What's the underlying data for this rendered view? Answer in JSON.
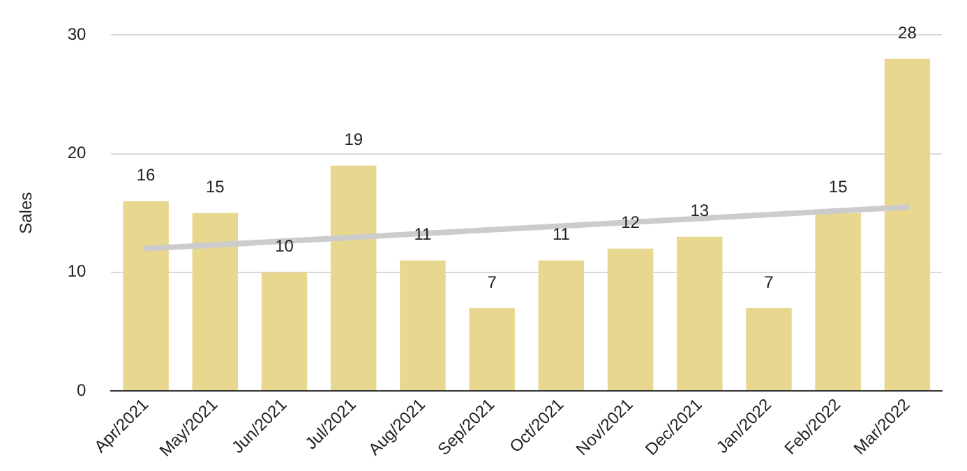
{
  "chart_data": {
    "type": "bar",
    "ylabel": "Sales",
    "categories": [
      "Apr/2021",
      "May/2021",
      "Jun/2021",
      "Jul/2021",
      "Aug/2021",
      "Sep/2021",
      "Oct/2021",
      "Nov/2021",
      "Dec/2021",
      "Jan/2022",
      "Feb/2022",
      "Mar/2022"
    ],
    "series": [
      {
        "color": "#e8d78f",
        "values": [
          16,
          15,
          10,
          19,
          11,
          7,
          11,
          12,
          13,
          7,
          15,
          28
        ],
        "value_labels": [
          "16",
          "15",
          "10",
          "19",
          "11",
          "7",
          "11",
          "12",
          "13",
          "7",
          "15",
          "28"
        ]
      },
      {
        "type": "line",
        "color": "#cccccc",
        "x": [
          "Apr/2021",
          "Mar/2022"
        ],
        "values": [
          12.0,
          15.5
        ]
      }
    ],
    "ylim": [
      0,
      30
    ],
    "yticks": [
      0,
      10,
      20,
      30
    ],
    "grid": "y",
    "legend": false
  }
}
